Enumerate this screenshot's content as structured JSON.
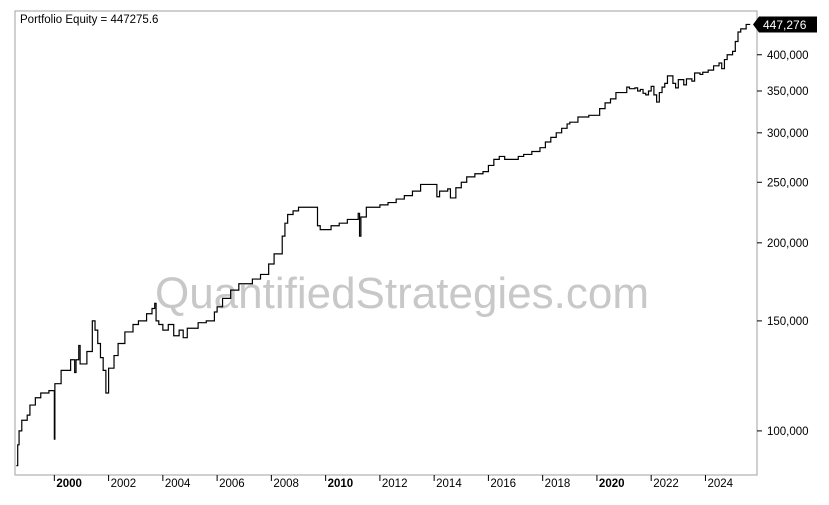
{
  "chart_data": {
    "type": "line",
    "title": "Portfolio Equity = 447275.6",
    "watermark": "QuantifiedStrategies.com",
    "last_value_label": "447,276",
    "last_value": 447276,
    "y_scale": "log",
    "ylim": [
      85000,
      470000
    ],
    "xlim": [
      1998.55,
      2025.9
    ],
    "y_ticks": [
      {
        "value": 100000,
        "label": "100,000"
      },
      {
        "value": 150000,
        "label": "150,000"
      },
      {
        "value": 200000,
        "label": "200,000"
      },
      {
        "value": 250000,
        "label": "250,000"
      },
      {
        "value": 300000,
        "label": "300,000"
      },
      {
        "value": 350000,
        "label": "350,000"
      },
      {
        "value": 400000,
        "label": "400,000"
      }
    ],
    "x_ticks": [
      {
        "value": 2000,
        "label": "2000",
        "bold": true
      },
      {
        "value": 2002,
        "label": "2002",
        "bold": false
      },
      {
        "value": 2004,
        "label": "2004",
        "bold": false
      },
      {
        "value": 2006,
        "label": "2006",
        "bold": false
      },
      {
        "value": 2008,
        "label": "2008",
        "bold": false
      },
      {
        "value": 2010,
        "label": "2010",
        "bold": true
      },
      {
        "value": 2012,
        "label": "2012",
        "bold": false
      },
      {
        "value": 2014,
        "label": "2014",
        "bold": false
      },
      {
        "value": 2016,
        "label": "2016",
        "bold": false
      },
      {
        "value": 2018,
        "label": "2018",
        "bold": false
      },
      {
        "value": 2020,
        "label": "2020",
        "bold": true
      },
      {
        "value": 2022,
        "label": "2022",
        "bold": false
      },
      {
        "value": 2024,
        "label": "2024",
        "bold": false
      }
    ],
    "grid": false,
    "series": [
      {
        "color": "#000000",
        "points": [
          [
            1998.6,
            88000
          ],
          [
            1998.65,
            95000
          ],
          [
            1998.7,
            100000
          ],
          [
            1998.8,
            104000
          ],
          [
            1999.0,
            106000
          ],
          [
            1999.1,
            110000
          ],
          [
            1999.3,
            113000
          ],
          [
            1999.5,
            115000
          ],
          [
            1999.8,
            116000
          ],
          [
            2000.0,
            97000
          ],
          [
            2000.02,
            119000
          ],
          [
            2000.1,
            119000
          ],
          [
            2000.25,
            125000
          ],
          [
            2000.6,
            130000
          ],
          [
            2000.75,
            124000
          ],
          [
            2000.8,
            130000
          ],
          [
            2000.9,
            137000
          ],
          [
            2000.95,
            128000
          ],
          [
            2001.2,
            134000
          ],
          [
            2001.4,
            150000
          ],
          [
            2001.5,
            145000
          ],
          [
            2001.6,
            138000
          ],
          [
            2001.7,
            131000
          ],
          [
            2001.8,
            125000
          ],
          [
            2001.9,
            115000
          ],
          [
            2002.0,
            126000
          ],
          [
            2002.2,
            132000
          ],
          [
            2002.35,
            138000
          ],
          [
            2002.6,
            144000
          ],
          [
            2002.9,
            148000
          ],
          [
            2003.1,
            150000
          ],
          [
            2003.4,
            154000
          ],
          [
            2003.6,
            157000
          ],
          [
            2003.7,
            160000
          ],
          [
            2003.75,
            150000
          ],
          [
            2003.85,
            148000
          ],
          [
            2004.0,
            145000
          ],
          [
            2004.2,
            148000
          ],
          [
            2004.4,
            142000
          ],
          [
            2004.6,
            145000
          ],
          [
            2004.75,
            141000
          ],
          [
            2004.9,
            146000
          ],
          [
            2005.1,
            146000
          ],
          [
            2005.3,
            149000
          ],
          [
            2005.6,
            150000
          ],
          [
            2005.9,
            155000
          ],
          [
            2006.0,
            158000
          ],
          [
            2006.2,
            163000
          ],
          [
            2006.5,
            168000
          ],
          [
            2006.8,
            172000
          ],
          [
            2007.1,
            172000
          ],
          [
            2007.3,
            175000
          ],
          [
            2007.6,
            178000
          ],
          [
            2007.9,
            185000
          ],
          [
            2008.1,
            192000
          ],
          [
            2008.4,
            205000
          ],
          [
            2008.5,
            215000
          ],
          [
            2008.6,
            222000
          ],
          [
            2008.8,
            225000
          ],
          [
            2009.0,
            228000
          ],
          [
            2009.2,
            228000
          ],
          [
            2009.4,
            228000
          ],
          [
            2009.6,
            228000
          ],
          [
            2009.7,
            213000
          ],
          [
            2009.8,
            210000
          ],
          [
            2010.2,
            213000
          ],
          [
            2010.5,
            215000
          ],
          [
            2010.8,
            218000
          ],
          [
            2011.1,
            218000
          ],
          [
            2011.2,
            223000
          ],
          [
            2011.25,
            205000
          ],
          [
            2011.3,
            220000
          ],
          [
            2011.5,
            228000
          ],
          [
            2011.7,
            228000
          ],
          [
            2012.0,
            230000
          ],
          [
            2012.3,
            232000
          ],
          [
            2012.6,
            235000
          ],
          [
            2012.9,
            238000
          ],
          [
            2013.2,
            242000
          ],
          [
            2013.5,
            248000
          ],
          [
            2013.8,
            248000
          ],
          [
            2014.0,
            248000
          ],
          [
            2014.1,
            237000
          ],
          [
            2014.2,
            242000
          ],
          [
            2014.5,
            244000
          ],
          [
            2014.6,
            236000
          ],
          [
            2014.8,
            245000
          ],
          [
            2015.0,
            250000
          ],
          [
            2015.2,
            255000
          ],
          [
            2015.5,
            258000
          ],
          [
            2015.8,
            260000
          ],
          [
            2016.0,
            266000
          ],
          [
            2016.2,
            272000
          ],
          [
            2016.4,
            275000
          ],
          [
            2016.6,
            272000
          ],
          [
            2016.9,
            272000
          ],
          [
            2017.1,
            275000
          ],
          [
            2017.3,
            277000
          ],
          [
            2017.6,
            280000
          ],
          [
            2017.9,
            284000
          ],
          [
            2018.1,
            290000
          ],
          [
            2018.3,
            295000
          ],
          [
            2018.5,
            300000
          ],
          [
            2018.7,
            305000
          ],
          [
            2018.9,
            310000
          ],
          [
            2019.0,
            312000
          ],
          [
            2019.3,
            318000
          ],
          [
            2019.7,
            320000
          ],
          [
            2020.0,
            320000
          ],
          [
            2020.1,
            328000
          ],
          [
            2020.3,
            335000
          ],
          [
            2020.5,
            340000
          ],
          [
            2020.7,
            348000
          ],
          [
            2020.9,
            348000
          ],
          [
            2021.1,
            355000
          ],
          [
            2021.2,
            353000
          ],
          [
            2021.4,
            354000
          ],
          [
            2021.5,
            350000
          ],
          [
            2021.6,
            352000
          ],
          [
            2021.7,
            347000
          ],
          [
            2021.8,
            345000
          ],
          [
            2021.9,
            350000
          ],
          [
            2022.0,
            356000
          ],
          [
            2022.1,
            345000
          ],
          [
            2022.2,
            336000
          ],
          [
            2022.3,
            348000
          ],
          [
            2022.4,
            355000
          ],
          [
            2022.5,
            360000
          ],
          [
            2022.6,
            370000
          ],
          [
            2022.8,
            360000
          ],
          [
            2022.9,
            354000
          ],
          [
            2023.0,
            365000
          ],
          [
            2023.2,
            358000
          ],
          [
            2023.3,
            366000
          ],
          [
            2023.5,
            363000
          ],
          [
            2023.6,
            374000
          ],
          [
            2023.8,
            372000
          ],
          [
            2023.9,
            375000
          ],
          [
            2024.1,
            378000
          ],
          [
            2024.3,
            384000
          ],
          [
            2024.5,
            388000
          ],
          [
            2024.6,
            380000
          ],
          [
            2024.7,
            393000
          ],
          [
            2024.8,
            400000
          ],
          [
            2025.0,
            405000
          ],
          [
            2025.1,
            420000
          ],
          [
            2025.2,
            435000
          ],
          [
            2025.3,
            440000
          ],
          [
            2025.5,
            447276
          ],
          [
            2025.65,
            447276
          ]
        ]
      }
    ]
  }
}
